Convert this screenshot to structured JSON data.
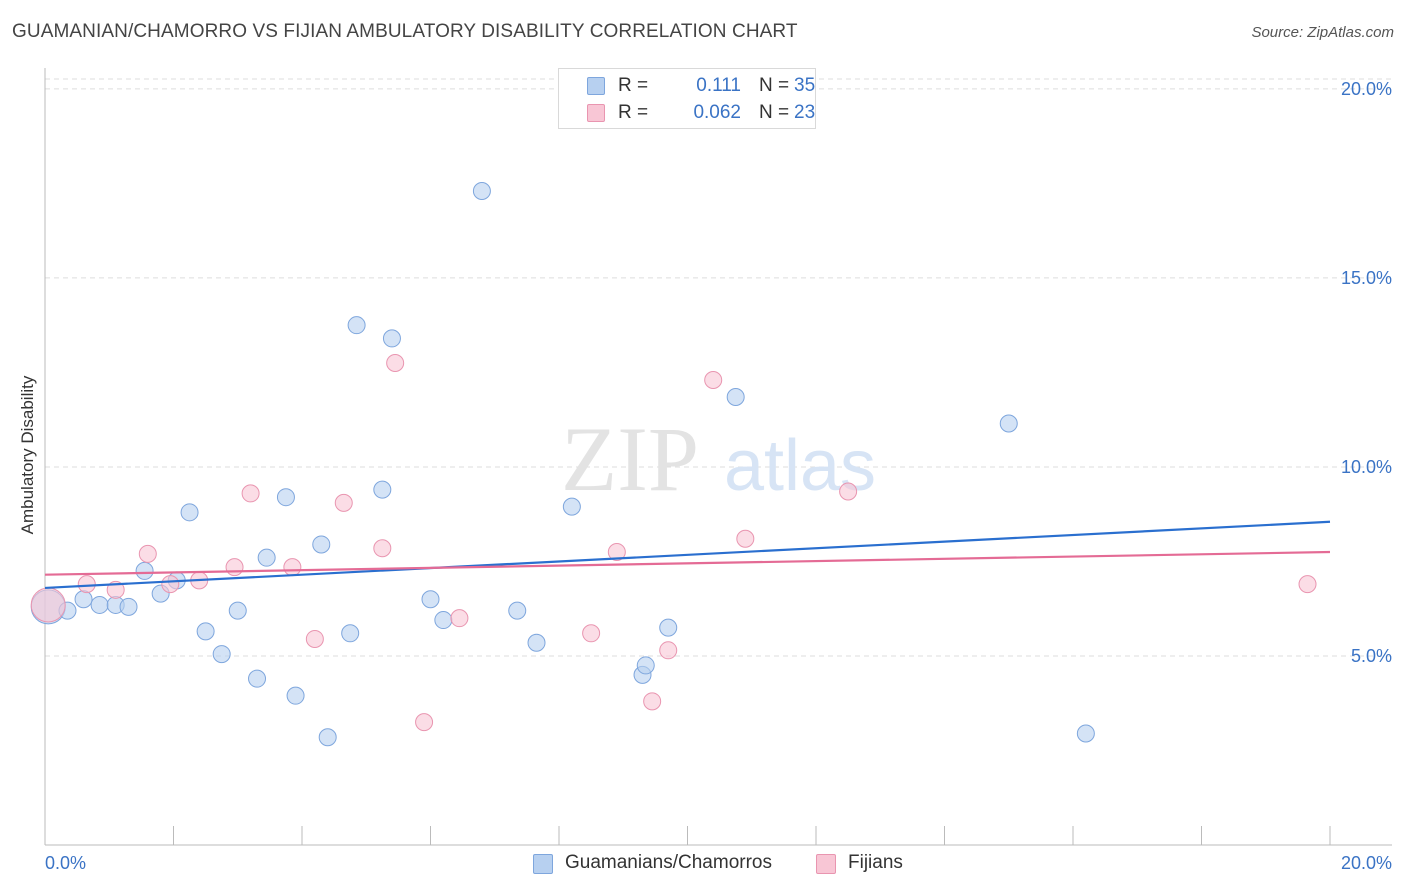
{
  "title": "GUAMANIAN/CHAMORRO VS FIJIAN AMBULATORY DISABILITY CORRELATION CHART",
  "source": "Source: ZipAtlas.com",
  "watermark": {
    "zip": "ZIP",
    "atlas": "atlas"
  },
  "legend_top": [
    {
      "r_label": "R =",
      "r_value": "0.111",
      "n_label": "N =",
      "n_value": "35"
    },
    {
      "r_label": "R =",
      "r_value": "0.062",
      "n_label": "N =",
      "n_value": "23"
    }
  ],
  "legend_bottom": [
    {
      "label": "Guamanians/Chamorros"
    },
    {
      "label": "Fijians"
    }
  ],
  "colors": {
    "blue_fill": "#b7d0f0",
    "blue_stroke": "#7ea6dd",
    "blue_line": "#2a6fcf",
    "pink_fill": "#f8c6d5",
    "pink_stroke": "#e995b0",
    "pink_line": "#e46b95",
    "tick_text": "#3a73c5",
    "grid": "#dddddd",
    "axis": "#bbbbbb"
  },
  "chart_data": {
    "type": "scatter",
    "title": "GUAMANIAN/CHAMORRO VS FIJIAN AMBULATORY DISABILITY CORRELATION CHART",
    "xlabel": "",
    "ylabel": "Ambulatory Disability",
    "xlim": [
      0,
      20
    ],
    "ylim": [
      0,
      20.5
    ],
    "x_tick_labels": [
      "0.0%",
      "20.0%"
    ],
    "y_ticks": [
      5,
      10,
      15,
      20
    ],
    "y_tick_labels": [
      "5.0%",
      "10.0%",
      "15.0%",
      "20.0%"
    ],
    "grid": true,
    "legend": "top-center",
    "series": [
      {
        "name": "Guamanians/Chamorros",
        "color": "#b7d0f0",
        "points": [
          [
            0.05,
            6.3,
            "large"
          ],
          [
            0.35,
            6.2
          ],
          [
            0.6,
            6.5
          ],
          [
            0.85,
            6.35
          ],
          [
            1.1,
            6.35
          ],
          [
            1.3,
            6.3
          ],
          [
            1.55,
            7.25
          ],
          [
            1.8,
            6.65
          ],
          [
            2.05,
            7.0
          ],
          [
            2.25,
            8.8
          ],
          [
            2.5,
            5.65
          ],
          [
            2.75,
            5.05
          ],
          [
            3.0,
            6.2
          ],
          [
            3.3,
            4.4
          ],
          [
            3.45,
            7.6
          ],
          [
            3.75,
            9.2
          ],
          [
            3.9,
            3.95
          ],
          [
            4.3,
            7.95
          ],
          [
            4.4,
            2.85
          ],
          [
            4.75,
            5.6
          ],
          [
            4.85,
            13.75
          ],
          [
            5.25,
            9.4
          ],
          [
            5.4,
            13.4
          ],
          [
            6.0,
            6.5
          ],
          [
            6.2,
            5.95
          ],
          [
            6.8,
            17.3
          ],
          [
            7.35,
            6.2
          ],
          [
            7.65,
            5.35
          ],
          [
            8.2,
            8.95
          ],
          [
            9.3,
            4.5
          ],
          [
            9.35,
            4.75
          ],
          [
            9.7,
            5.75
          ],
          [
            10.75,
            11.85
          ],
          [
            15.0,
            11.15
          ],
          [
            16.2,
            2.95
          ]
        ],
        "trend": [
          [
            0,
            6.8
          ],
          [
            20,
            8.55
          ]
        ]
      },
      {
        "name": "Fijians",
        "color": "#f8c6d5",
        "points": [
          [
            0.05,
            6.35,
            "large"
          ],
          [
            0.65,
            6.9
          ],
          [
            1.1,
            6.75
          ],
          [
            1.6,
            7.7
          ],
          [
            1.95,
            6.9
          ],
          [
            2.4,
            7.0
          ],
          [
            2.95,
            7.35
          ],
          [
            3.2,
            9.3
          ],
          [
            3.85,
            7.35
          ],
          [
            4.2,
            5.45
          ],
          [
            4.65,
            9.05
          ],
          [
            5.25,
            7.85
          ],
          [
            5.45,
            12.75
          ],
          [
            5.9,
            3.25
          ],
          [
            6.45,
            6.0
          ],
          [
            8.5,
            5.6
          ],
          [
            8.9,
            7.75
          ],
          [
            9.45,
            3.8
          ],
          [
            9.7,
            5.15
          ],
          [
            10.4,
            12.3
          ],
          [
            10.9,
            8.1
          ],
          [
            12.5,
            9.35
          ],
          [
            19.65,
            6.9
          ]
        ],
        "trend": [
          [
            0,
            7.15
          ],
          [
            20,
            7.75
          ]
        ]
      }
    ]
  }
}
